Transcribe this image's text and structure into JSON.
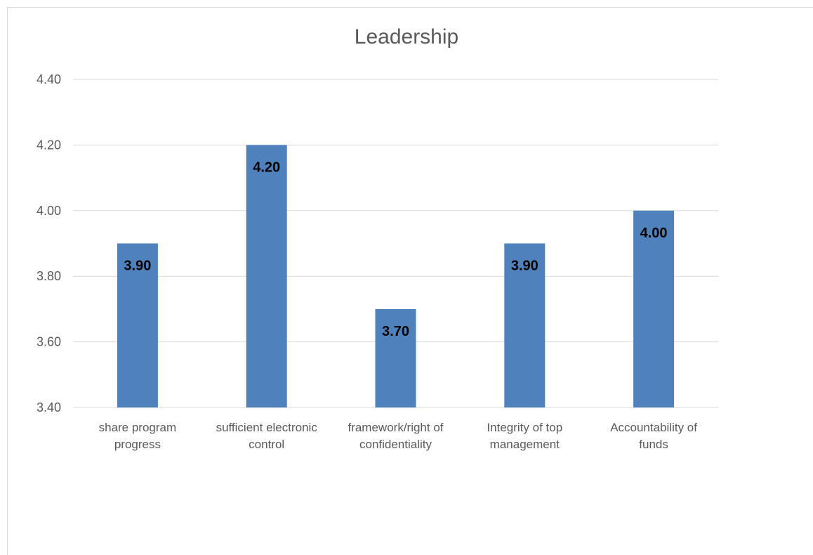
{
  "chart_data": {
    "type": "bar",
    "title": "Leadership",
    "categories": [
      [
        "share program",
        "progress"
      ],
      [
        "sufficient electronic",
        "control"
      ],
      [
        "framework/right of",
        "confidentiality"
      ],
      [
        "Integrity of top",
        "management"
      ],
      [
        "Accountability of",
        "funds"
      ]
    ],
    "values": [
      3.9,
      4.2,
      3.7,
      3.9,
      4.0
    ],
    "data_labels": [
      "3.90",
      "4.20",
      "3.70",
      "3.90",
      "4.00"
    ],
    "ylim": [
      3.4,
      4.4
    ],
    "yticks": [
      3.4,
      3.6,
      3.8,
      4.0,
      4.2,
      4.4
    ],
    "ytick_labels": [
      "3.40",
      "3.60",
      "3.80",
      "4.00",
      "4.20",
      "4.40"
    ],
    "xlabel": "",
    "ylabel": "",
    "grid": true,
    "legend": "none",
    "bar_color": "#4f81bd",
    "grid_color": "#d9d9d9"
  }
}
